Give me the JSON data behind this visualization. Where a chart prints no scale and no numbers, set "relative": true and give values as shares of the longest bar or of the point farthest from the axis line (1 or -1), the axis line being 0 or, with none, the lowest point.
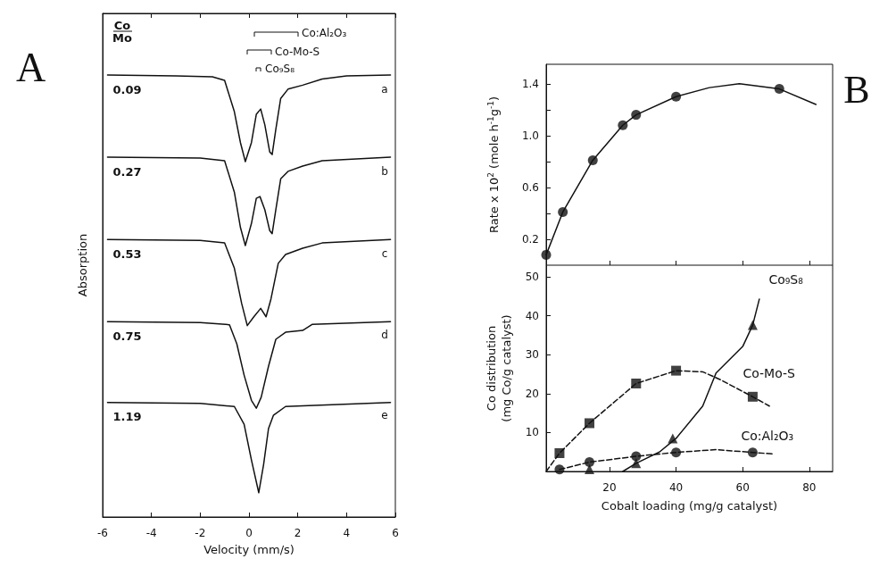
{
  "chart_data": [
    {
      "type": "line",
      "relative": true,
      "xlabel": "Velocity (mm/s)",
      "ylabel": "Absorption",
      "xlim": [
        -6,
        6
      ],
      "xticks": [
        -6,
        -4,
        -2,
        0,
        2,
        4,
        6
      ],
      "line_style": "solid",
      "annotations": [
        "A",
        "Co",
        "Mo",
        "Co:Al₂O₃",
        "Co-Mo-S",
        "Co₉S₈",
        "a",
        "b",
        "c",
        "d",
        "e"
      ],
      "series": [
        {
          "name": "0.09",
          "color": "#111111",
          "x": [
            -5.8,
            -3,
            -1.5,
            -1,
            -0.6,
            -0.35,
            -0.15,
            0.1,
            0.3,
            0.48,
            0.65,
            0.85,
            0.95,
            1.1,
            1.3,
            1.6,
            2.2,
            3,
            4,
            5.8
          ],
          "values": [
            1.0,
            0.998,
            0.996,
            0.988,
            0.917,
            0.847,
            0.804,
            0.847,
            0.911,
            0.923,
            0.887,
            0.826,
            0.82,
            0.877,
            0.947,
            0.968,
            0.977,
            0.991,
            0.998,
            1.0
          ]
        },
        {
          "name": "0.27",
          "color": "#111111",
          "x": [
            -5.8,
            -2,
            -1,
            -0.6,
            -0.35,
            -0.15,
            0.1,
            0.3,
            0.45,
            0.65,
            0.85,
            0.95,
            1.1,
            1.3,
            1.6,
            2.2,
            3,
            5.8
          ],
          "values": [
            0.814,
            0.812,
            0.806,
            0.735,
            0.655,
            0.614,
            0.664,
            0.721,
            0.725,
            0.695,
            0.648,
            0.641,
            0.695,
            0.765,
            0.782,
            0.794,
            0.806,
            0.814
          ]
        },
        {
          "name": "0.53",
          "color": "#111111",
          "x": [
            -5.8,
            -2,
            -1,
            -0.6,
            -0.3,
            -0.07,
            0.2,
            0.48,
            0.7,
            0.9,
            1.2,
            1.5,
            2.2,
            3,
            5.8
          ],
          "values": [
            0.628,
            0.626,
            0.62,
            0.563,
            0.483,
            0.433,
            0.453,
            0.472,
            0.453,
            0.493,
            0.574,
            0.594,
            0.608,
            0.62,
            0.628
          ]
        },
        {
          "name": "0.75",
          "color": "#111111",
          "x": [
            -5.8,
            -2,
            -0.8,
            -0.5,
            -0.2,
            0.1,
            0.3,
            0.5,
            0.8,
            1.1,
            1.5,
            2.2,
            2.6,
            5.8
          ],
          "values": [
            0.442,
            0.44,
            0.435,
            0.392,
            0.321,
            0.264,
            0.246,
            0.271,
            0.341,
            0.402,
            0.418,
            0.422,
            0.436,
            0.442
          ]
        },
        {
          "name": "1.19",
          "color": "#111111",
          "x": [
            -5.8,
            -2,
            -0.6,
            -0.2,
            0.1,
            0.4,
            0.6,
            0.8,
            1.0,
            1.5,
            5.8
          ],
          "values": [
            0.259,
            0.257,
            0.25,
            0.21,
            0.129,
            0.055,
            0.119,
            0.2,
            0.23,
            0.25,
            0.259
          ]
        }
      ]
    },
    {
      "type": "line",
      "ylabel": "Rate x 10$^{2}$ (mole h$^{-1}$g$^{-1}$)",
      "xlim": [
        1,
        87
      ],
      "xticks": [
        20,
        40,
        60,
        80
      ],
      "ylim": [
        0,
        1.55
      ],
      "yticks": [
        0.2,
        {
          "value": 0.4,
          "label": null
        },
        0.6,
        {
          "value": 0.8,
          "label": null
        },
        {
          "value": 1,
          "label": "1.0"
        },
        {
          "value": 1.2,
          "label": null
        },
        1.4
      ],
      "tick_labels": "y",
      "annotations": [
        "B"
      ],
      "series": [
        {
          "color": "#111111",
          "marker": "none",
          "line_style": "solid",
          "x": [
            1,
            6,
            15,
            24,
            28,
            40,
            50,
            59,
            71,
            82
          ],
          "values": [
            0.08,
            0.41,
            0.81,
            1.08,
            1.16,
            1.3,
            1.37,
            1.4,
            1.36,
            1.24
          ]
        },
        {
          "type": "scatter",
          "color": "#111111",
          "marker": "circle",
          "x": [
            1,
            6,
            15,
            24,
            28,
            40,
            71
          ],
          "values": [
            0.08,
            0.41,
            0.81,
            1.08,
            1.16,
            1.3,
            1.36
          ]
        }
      ]
    },
    {
      "type": "line",
      "xlabel": "Cobalt loading (mg/g catalyst)",
      "ylabel": "Co distribution\n(mg Co/g catalyst)",
      "xlim": [
        1,
        87
      ],
      "xticks": [
        20,
        40,
        60,
        80
      ],
      "ylim": [
        0,
        53
      ],
      "yticks": [
        {
          "value": 0,
          "label": null
        },
        10,
        20,
        30,
        40,
        50
      ],
      "series": [
        {
          "name": "Co₉S₈",
          "type": "scatter",
          "color": "#111111",
          "marker": "triangle",
          "x": [
            14,
            28,
            39,
            63
          ],
          "values": [
            0.6,
            2.1,
            8.5,
            37.6
          ]
        },
        {
          "name": "Co-Mo-S",
          "type": "scatter",
          "color": "#111111",
          "marker": "square",
          "x": [
            5,
            14,
            28,
            40,
            63
          ],
          "values": [
            4.7,
            12.4,
            22.6,
            25.9,
            19.2
          ]
        },
        {
          "name": "Co:Al₂O₃",
          "type": "scatter",
          "color": "#111111",
          "marker": "circle",
          "x": [
            5,
            14,
            28,
            40,
            63
          ],
          "values": [
            0.5,
            2.4,
            3.9,
            4.9,
            4.9
          ]
        },
        {
          "color": "#111111",
          "marker": "none",
          "line_style": "solid",
          "x": [
            24,
            28,
            35,
            40,
            48,
            52,
            60,
            63,
            65
          ],
          "values": [
            0,
            2.1,
            5,
            8.5,
            16.8,
            25.3,
            32.1,
            37.6,
            44.3
          ]
        },
        {
          "color": "#111111",
          "marker": "none",
          "line_style": "dashed",
          "x": [
            1,
            5,
            14,
            28,
            40,
            48,
            53,
            63,
            68
          ],
          "values": [
            0,
            4.7,
            12.4,
            22.6,
            25.9,
            25.6,
            23.7,
            19.2,
            16.8
          ]
        },
        {
          "color": "#111111",
          "marker": "none",
          "line_style": "dashed",
          "x": [
            5,
            14,
            28,
            40,
            52,
            63,
            69
          ],
          "values": [
            0.5,
            2.4,
            3.9,
            4.9,
            5.6,
            4.9,
            4.5
          ]
        }
      ]
    }
  ]
}
